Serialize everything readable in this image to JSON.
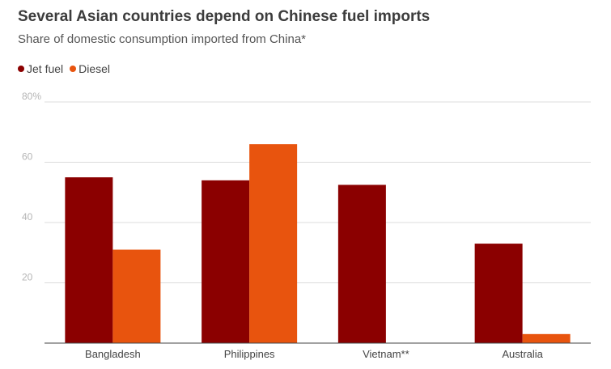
{
  "header": {
    "title": "Several Asian countries depend on Chinese fuel imports",
    "subtitle": "Share of domestic consumption imported from China*"
  },
  "chart_data": {
    "type": "bar",
    "title": "Several Asian countries depend on Chinese fuel imports",
    "subtitle": "Share of domestic consumption imported from China*",
    "categories": [
      "Bangladesh",
      "Philippines",
      "Vietnam**",
      "Australia"
    ],
    "series": [
      {
        "name": "Jet fuel",
        "color": "#8b0000",
        "values": [
          55,
          54,
          52.5,
          33
        ]
      },
      {
        "name": "Diesel",
        "color": "#e8540e",
        "values": [
          31,
          66,
          0,
          3
        ]
      }
    ],
    "y_ticks": [
      {
        "value": 80,
        "label": "80%"
      },
      {
        "value": 60,
        "label": "60"
      },
      {
        "value": 40,
        "label": "40"
      },
      {
        "value": 20,
        "label": "20"
      }
    ],
    "ylim": [
      0,
      80
    ],
    "xlabel": "",
    "ylabel": "",
    "grid": true,
    "legend_position": "top-left"
  }
}
